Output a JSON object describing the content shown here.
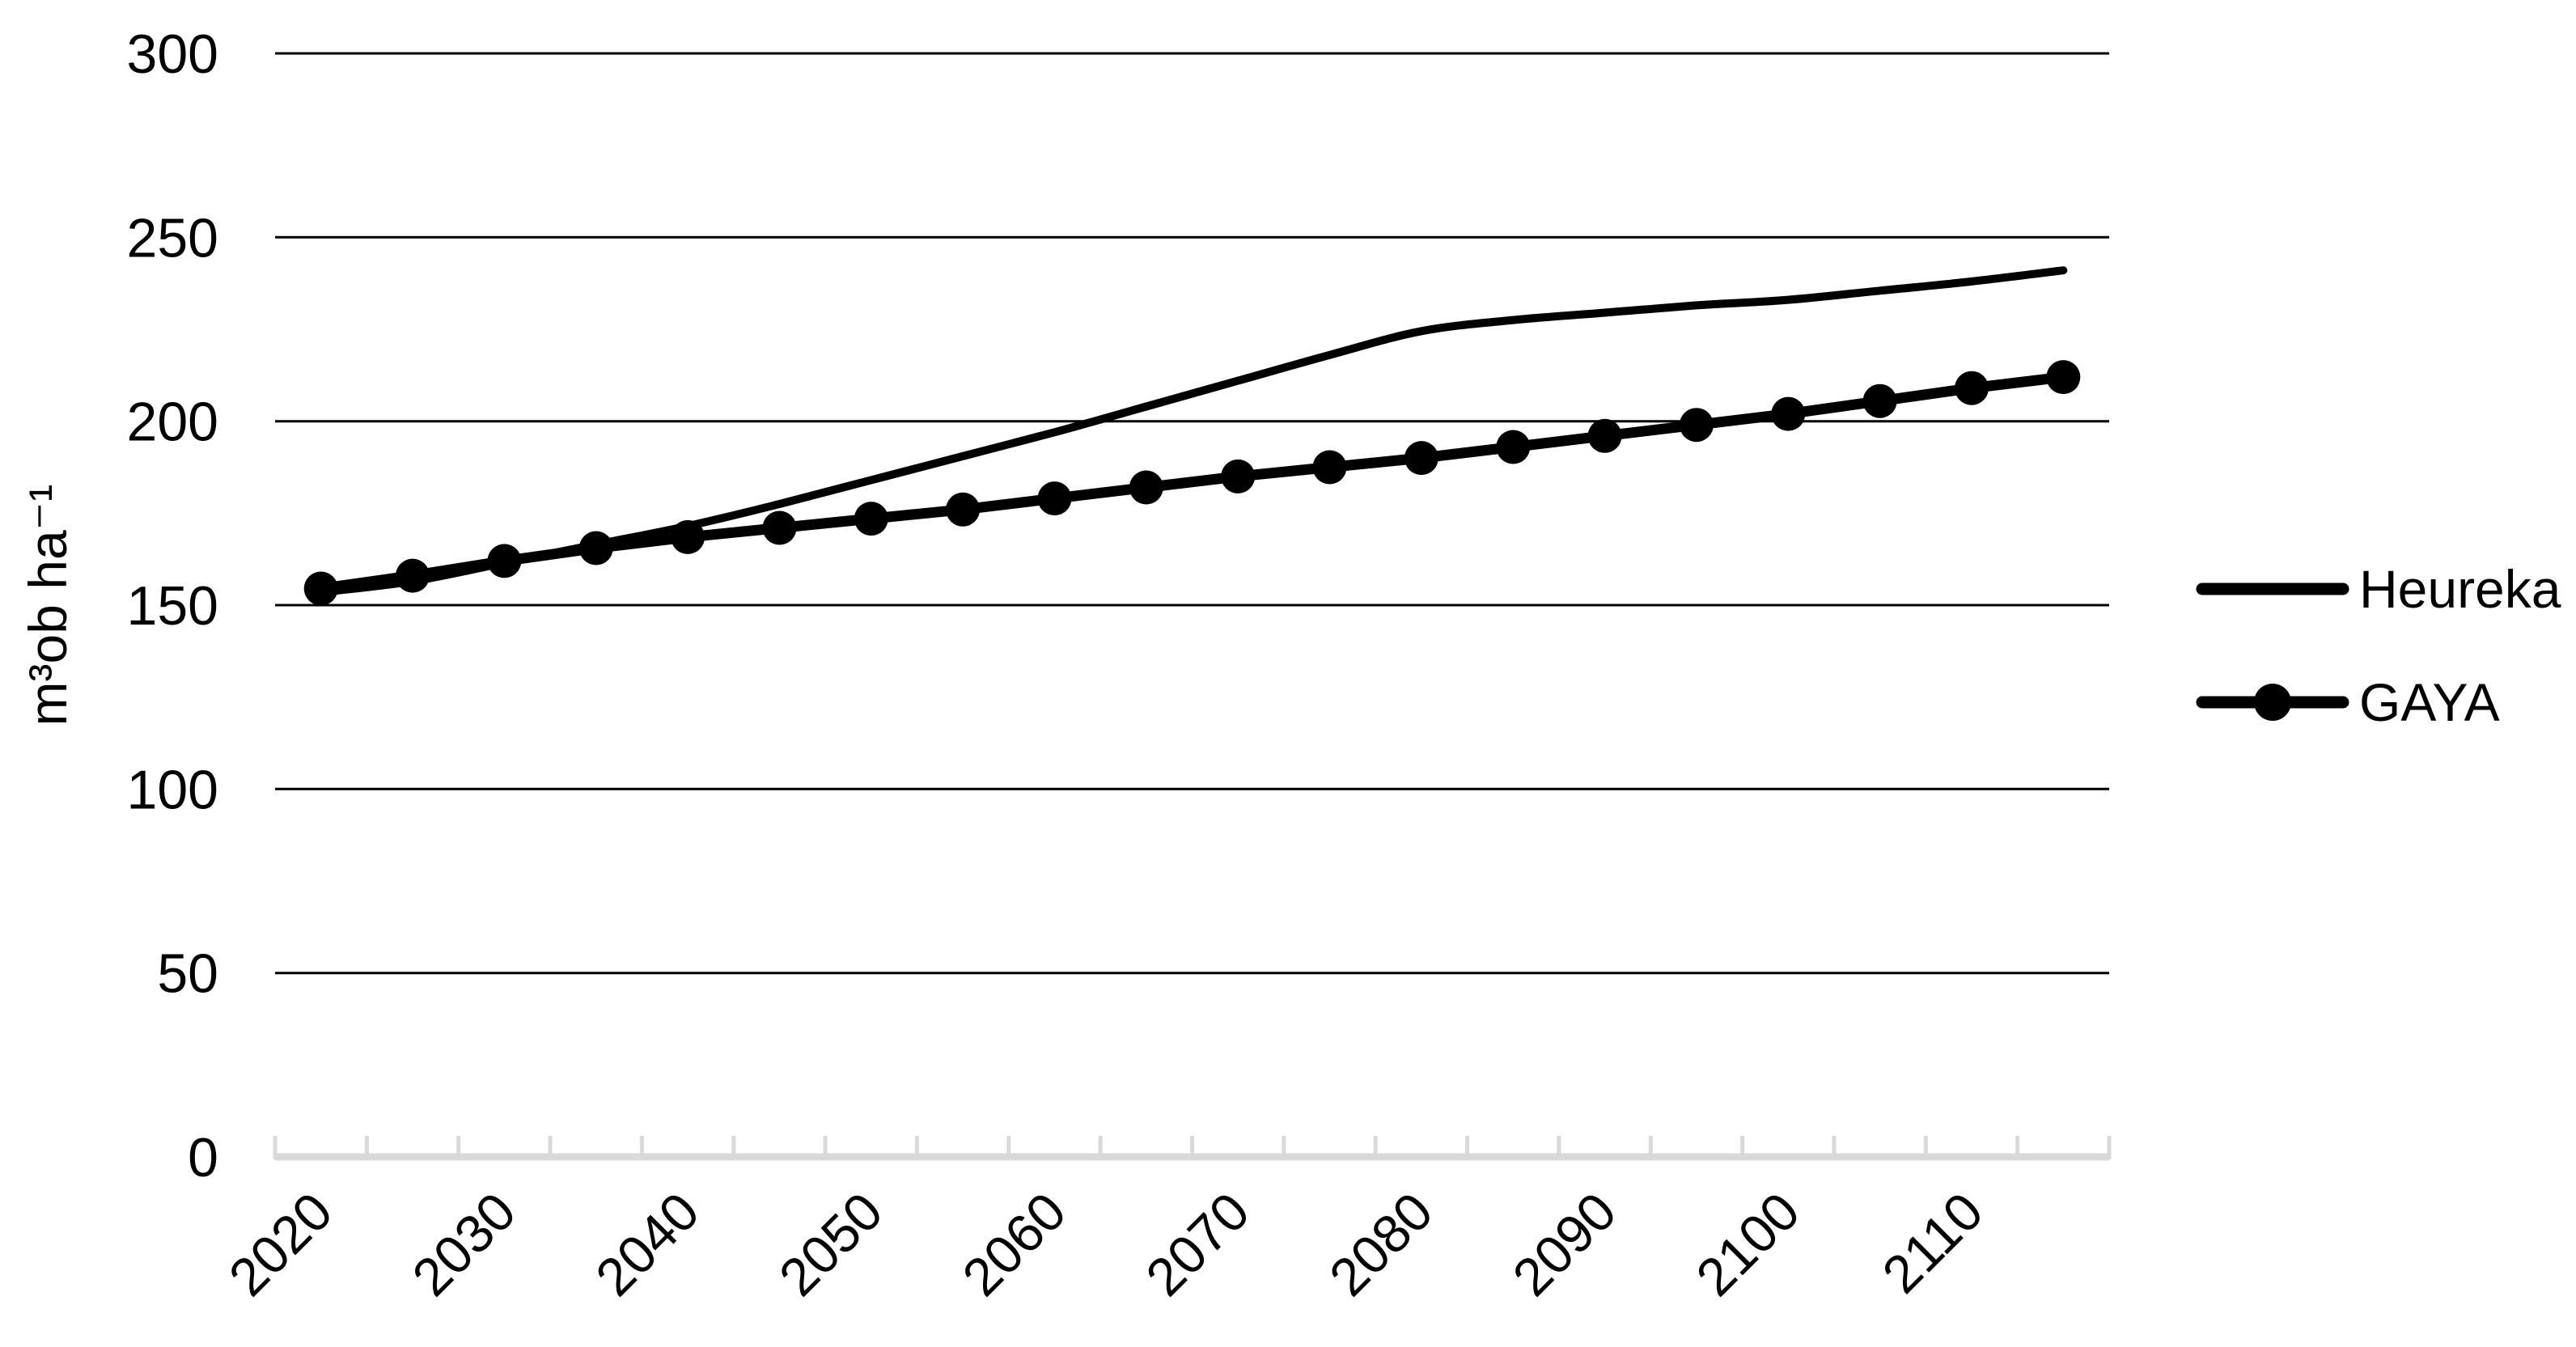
{
  "figure": {
    "background": "#ffffff",
    "text_color": "#000000",
    "series_color": "#000000",
    "gridline_color": "#000000",
    "x_axis_line_color": "#d9d9d9"
  },
  "chart_data": {
    "type": "line",
    "title": "",
    "xlabel": "",
    "ylabel": "m³ob ha⁻¹",
    "ylim": [
      0,
      300
    ],
    "yticks": [
      0,
      50,
      100,
      150,
      200,
      250,
      300
    ],
    "grid": true,
    "legend_position": "right",
    "x": [
      2020,
      2025,
      2030,
      2035,
      2040,
      2045,
      2050,
      2055,
      2060,
      2065,
      2070,
      2075,
      2080,
      2085,
      2090,
      2095,
      2100,
      2105,
      2110,
      2115
    ],
    "xtick_labels": [
      "2020",
      "2030",
      "2040",
      "2050",
      "2060",
      "2070",
      "2080",
      "2090",
      "2100",
      "2110"
    ],
    "series": [
      {
        "name": "Heureka",
        "color": "#000000",
        "marker": "none",
        "smooth": true,
        "values": [
          153.5,
          156.5,
          161.5,
          166.5,
          171.5,
          177.5,
          184,
          190.5,
          197,
          204,
          211,
          218,
          224.5,
          227.5,
          229.5,
          231.5,
          233,
          235.5,
          238,
          241
        ]
      },
      {
        "name": "GAYA",
        "color": "#000000",
        "marker": "circle",
        "smooth": false,
        "values": [
          154.5,
          158,
          162,
          165.5,
          168.5,
          171,
          173.5,
          176,
          179,
          182,
          185,
          187.5,
          190,
          193,
          196,
          199,
          202,
          205.5,
          209,
          212
        ]
      }
    ]
  }
}
